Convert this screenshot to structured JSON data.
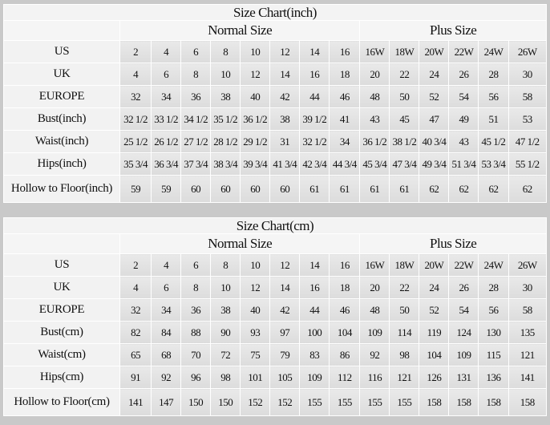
{
  "colors": {
    "background": "#c9c9c9",
    "cell": "#e2e2e2",
    "header": "#f3f3f3",
    "grid": "#ffffff"
  },
  "tables": [
    {
      "title": "Size Chart(inch)",
      "normal_label": "Normal Size",
      "plus_label": "Plus Size",
      "rows": [
        {
          "label": "US",
          "values": [
            "2",
            "4",
            "6",
            "8",
            "10",
            "12",
            "14",
            "16",
            "16W",
            "18W",
            "20W",
            "22W",
            "24W",
            "26W"
          ]
        },
        {
          "label": "UK",
          "values": [
            "4",
            "6",
            "8",
            "10",
            "12",
            "14",
            "16",
            "18",
            "20",
            "22",
            "24",
            "26",
            "28",
            "30"
          ]
        },
        {
          "label": "EUROPE",
          "values": [
            "32",
            "34",
            "36",
            "38",
            "40",
            "42",
            "44",
            "46",
            "48",
            "50",
            "52",
            "54",
            "56",
            "58"
          ]
        },
        {
          "label": "Bust(inch)",
          "values": [
            "32 1/2",
            "33 1/2",
            "34 1/2",
            "35 1/2",
            "36 1/2",
            "38",
            "39 1/2",
            "41",
            "43",
            "45",
            "47",
            "49",
            "51",
            "53"
          ]
        },
        {
          "label": "Waist(inch)",
          "values": [
            "25 1/2",
            "26 1/2",
            "27 1/2",
            "28 1/2",
            "29 1/2",
            "31",
            "32 1/2",
            "34",
            "36 1/2",
            "38 1/2",
            "40 3/4",
            "43",
            "45 1/2",
            "47 1/2"
          ]
        },
        {
          "label": "Hips(inch)",
          "values": [
            "35 3/4",
            "36 3/4",
            "37 3/4",
            "38 3/4",
            "39 3/4",
            "41 3/4",
            "42 3/4",
            "44 3/4",
            "45 3/4",
            "47 3/4",
            "49 3/4",
            "51 3/4",
            "53 3/4",
            "55 1/2"
          ]
        },
        {
          "label": "Hollow to Floor(inch)",
          "values": [
            "59",
            "59",
            "60",
            "60",
            "60",
            "60",
            "61",
            "61",
            "61",
            "61",
            "62",
            "62",
            "62",
            "62"
          ]
        }
      ]
    },
    {
      "title": "Size Chart(cm)",
      "normal_label": "Normal Size",
      "plus_label": "Plus Size",
      "rows": [
        {
          "label": "US",
          "values": [
            "2",
            "4",
            "6",
            "8",
            "10",
            "12",
            "14",
            "16",
            "16W",
            "18W",
            "20W",
            "22W",
            "24W",
            "26W"
          ]
        },
        {
          "label": "UK",
          "values": [
            "4",
            "6",
            "8",
            "10",
            "12",
            "14",
            "16",
            "18",
            "20",
            "22",
            "24",
            "26",
            "28",
            "30"
          ]
        },
        {
          "label": "EUROPE",
          "values": [
            "32",
            "34",
            "36",
            "38",
            "40",
            "42",
            "44",
            "46",
            "48",
            "50",
            "52",
            "54",
            "56",
            "58"
          ]
        },
        {
          "label": "Bust(cm)",
          "values": [
            "82",
            "84",
            "88",
            "90",
            "93",
            "97",
            "100",
            "104",
            "109",
            "114",
            "119",
            "124",
            "130",
            "135"
          ]
        },
        {
          "label": "Waist(cm)",
          "values": [
            "65",
            "68",
            "70",
            "72",
            "75",
            "79",
            "83",
            "86",
            "92",
            "98",
            "104",
            "109",
            "115",
            "121"
          ]
        },
        {
          "label": "Hips(cm)",
          "values": [
            "91",
            "92",
            "96",
            "98",
            "101",
            "105",
            "109",
            "112",
            "116",
            "121",
            "126",
            "131",
            "136",
            "141"
          ]
        },
        {
          "label": "Hollow to Floor(cm)",
          "values": [
            "141",
            "147",
            "150",
            "150",
            "152",
            "152",
            "155",
            "155",
            "155",
            "155",
            "158",
            "158",
            "158",
            "158"
          ]
        }
      ]
    }
  ]
}
